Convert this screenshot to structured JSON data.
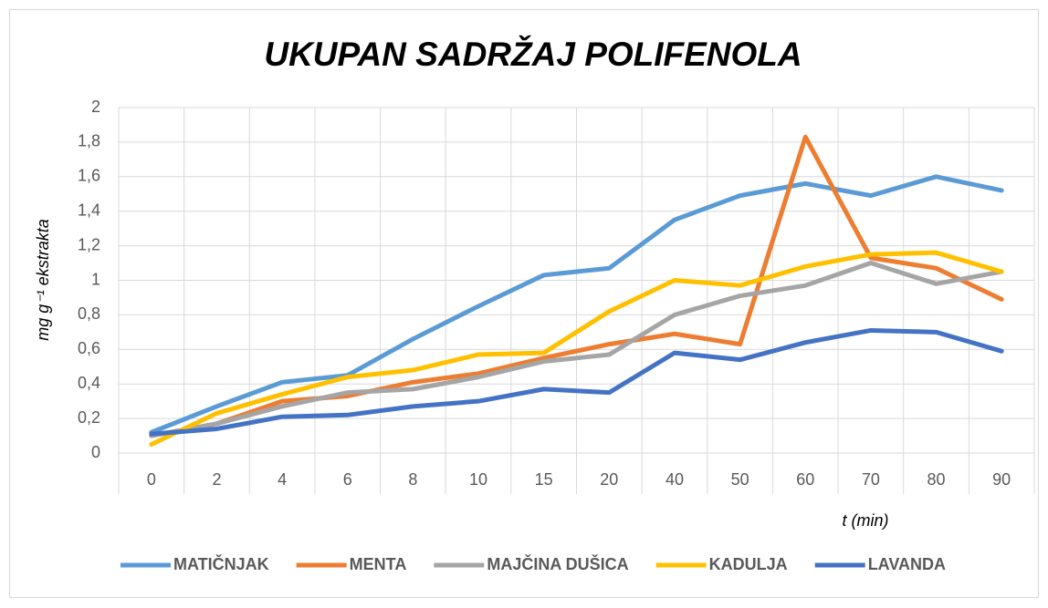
{
  "chart_data": {
    "type": "line",
    "title": "UKUPAN SADRŽAJ POLIFENOLA",
    "y_label": "mg g⁻¹ ekstrakta",
    "x_label": "t (min)",
    "categories": [
      "0",
      "2",
      "4",
      "6",
      "8",
      "10",
      "15",
      "20",
      "40",
      "50",
      "60",
      "70",
      "80",
      "90"
    ],
    "series": [
      {
        "name": "MATIČNJAK",
        "color": "#5b9bd5",
        "values": [
          0.12,
          0.27,
          0.41,
          0.45,
          0.66,
          0.85,
          1.03,
          1.07,
          1.35,
          1.49,
          1.56,
          1.49,
          1.6,
          1.52
        ]
      },
      {
        "name": "MENTA",
        "color": "#ed7d31",
        "values": [
          0.1,
          0.17,
          0.3,
          0.33,
          0.41,
          0.46,
          0.55,
          0.63,
          0.69,
          0.63,
          1.83,
          1.13,
          1.07,
          0.89
        ]
      },
      {
        "name": "MAJČINA DUŠICA",
        "color": "#a5a5a5",
        "values": [
          0.1,
          0.17,
          0.27,
          0.35,
          0.37,
          0.44,
          0.53,
          0.57,
          0.8,
          0.91,
          0.97,
          1.1,
          0.98,
          1.05
        ]
      },
      {
        "name": "KADULJA",
        "color": "#ffc000",
        "values": [
          0.05,
          0.23,
          0.34,
          0.44,
          0.48,
          0.57,
          0.58,
          0.82,
          1.0,
          0.97,
          1.08,
          1.15,
          1.16,
          1.05
        ]
      },
      {
        "name": "LAVANDA",
        "color": "#4472c4",
        "values": [
          0.11,
          0.14,
          0.21,
          0.22,
          0.27,
          0.3,
          0.37,
          0.35,
          0.58,
          0.54,
          0.64,
          0.71,
          0.7,
          0.59
        ]
      }
    ],
    "ylim": [
      0,
      2
    ],
    "yticks": [
      0,
      {
        "value": 0.2,
        "label": "0,2"
      },
      {
        "value": 0.4,
        "label": "0,4"
      },
      {
        "value": 0.6,
        "label": "0,6"
      },
      {
        "value": 0.8,
        "label": "0,8"
      },
      1,
      {
        "value": 1.2,
        "label": "1,2"
      },
      {
        "value": 1.4,
        "label": "1,4"
      },
      {
        "value": 1.6,
        "label": "1,6"
      },
      {
        "value": 1.8,
        "label": "1,8"
      },
      2
    ],
    "grid": true,
    "legend": "bottom"
  }
}
